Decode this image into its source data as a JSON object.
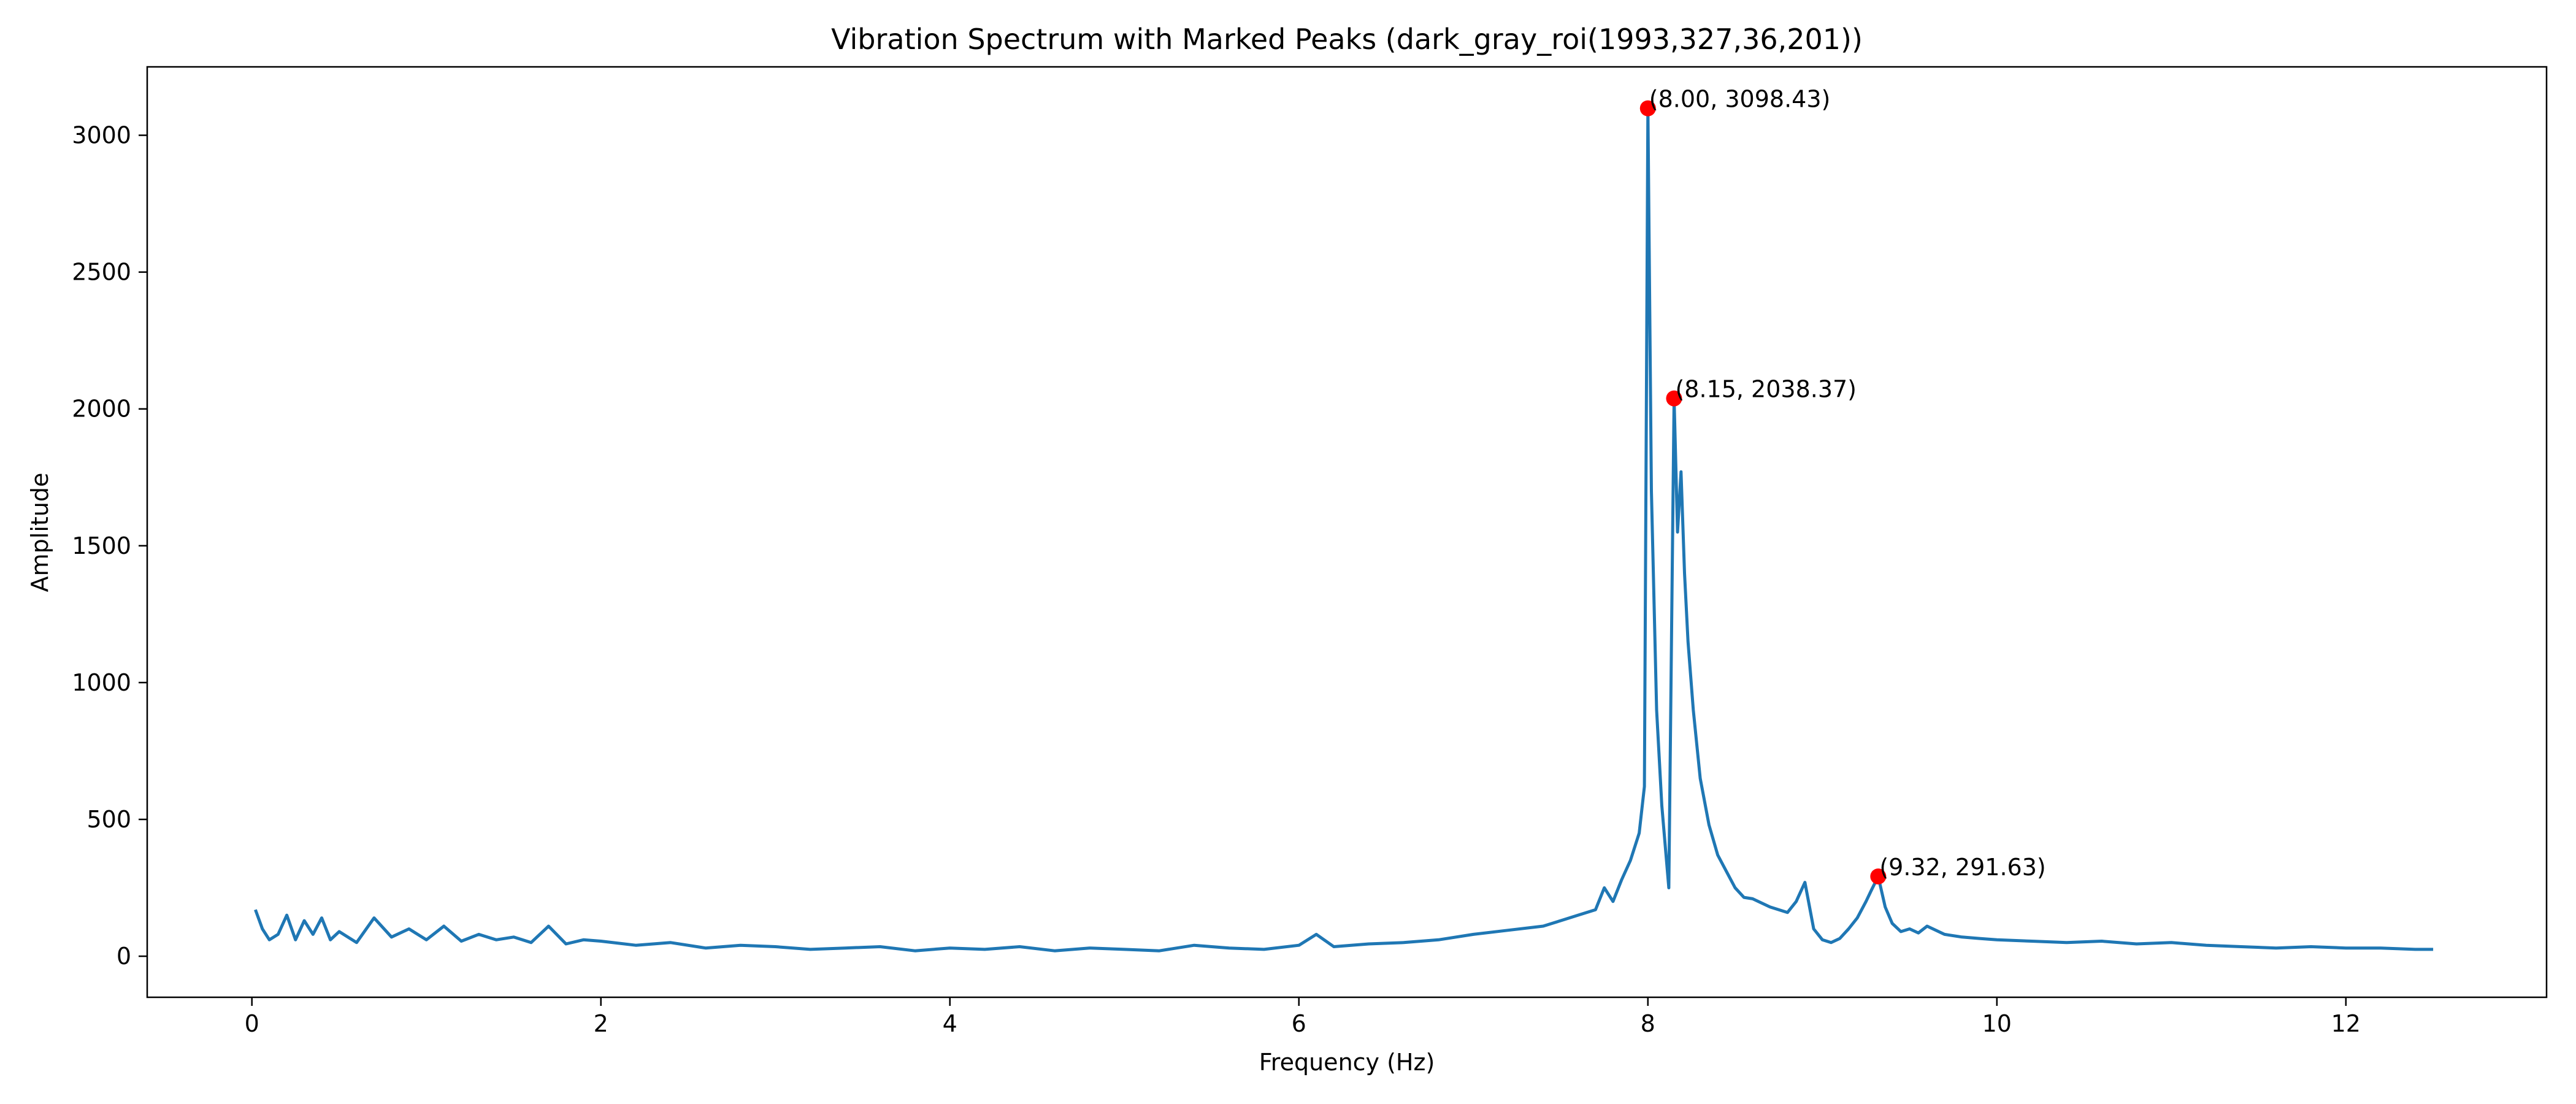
{
  "chart_data": {
    "type": "line",
    "title": "Vibration Spectrum with Marked Peaks (dark_gray_roi(1993,327,36,201))",
    "xlabel": "Frequency (Hz)",
    "ylabel": "Amplitude",
    "xlim": [
      -0.6,
      13.15
    ],
    "ylim": [
      -150,
      3250
    ],
    "xticks": [
      0,
      2,
      4,
      6,
      8,
      10,
      12
    ],
    "yticks": [
      0,
      500,
      1000,
      1500,
      2000,
      2500,
      3000
    ],
    "grid": false,
    "series": [
      {
        "color": "#1f77b4",
        "x": [
          0.02,
          0.06,
          0.1,
          0.15,
          0.2,
          0.25,
          0.3,
          0.35,
          0.4,
          0.45,
          0.5,
          0.6,
          0.7,
          0.8,
          0.9,
          1.0,
          1.1,
          1.2,
          1.3,
          1.4,
          1.5,
          1.6,
          1.7,
          1.8,
          1.9,
          2.0,
          2.2,
          2.4,
          2.6,
          2.8,
          3.0,
          3.2,
          3.4,
          3.6,
          3.8,
          4.0,
          4.2,
          4.4,
          4.6,
          4.8,
          5.0,
          5.2,
          5.4,
          5.6,
          5.8,
          6.0,
          6.1,
          6.2,
          6.4,
          6.6,
          6.8,
          7.0,
          7.2,
          7.4,
          7.5,
          7.6,
          7.7,
          7.75,
          7.8,
          7.85,
          7.9,
          7.95,
          7.98,
          8.0,
          8.02,
          8.05,
          8.08,
          8.12,
          8.15,
          8.17,
          8.19,
          8.21,
          8.23,
          8.26,
          8.3,
          8.35,
          8.4,
          8.45,
          8.5,
          8.55,
          8.6,
          8.7,
          8.8,
          8.85,
          8.9,
          8.95,
          9.0,
          9.05,
          9.1,
          9.15,
          9.2,
          9.25,
          9.28,
          9.32,
          9.36,
          9.4,
          9.45,
          9.5,
          9.55,
          9.6,
          9.7,
          9.8,
          9.9,
          10.0,
          10.2,
          10.4,
          10.6,
          10.8,
          11.0,
          11.2,
          11.4,
          11.6,
          11.8,
          12.0,
          12.2,
          12.4,
          12.5
        ],
        "values": [
          170,
          100,
          60,
          80,
          150,
          60,
          130,
          80,
          140,
          60,
          90,
          50,
          140,
          70,
          100,
          60,
          110,
          55,
          80,
          60,
          70,
          50,
          110,
          45,
          60,
          55,
          40,
          50,
          30,
          40,
          35,
          25,
          30,
          35,
          20,
          30,
          25,
          35,
          20,
          30,
          25,
          20,
          40,
          30,
          25,
          40,
          80,
          35,
          45,
          50,
          60,
          80,
          95,
          110,
          130,
          150,
          170,
          250,
          200,
          280,
          350,
          450,
          620,
          3098.43,
          1700,
          900,
          550,
          250,
          2038.37,
          1550,
          1770,
          1400,
          1150,
          900,
          650,
          480,
          370,
          310,
          250,
          215,
          210,
          180,
          160,
          200,
          270,
          100,
          60,
          50,
          65,
          100,
          140,
          200,
          240,
          291.63,
          180,
          120,
          90,
          100,
          85,
          110,
          80,
          70,
          65,
          60,
          55,
          50,
          55,
          45,
          50,
          40,
          35,
          30,
          35,
          30,
          30,
          25,
          25
        ]
      }
    ],
    "markers": {
      "color": "#ff0000",
      "points": [
        {
          "x": 8.0,
          "y": 3098.43,
          "label": "(8.00, 3098.43)"
        },
        {
          "x": 8.15,
          "y": 2038.37,
          "label": "(8.15, 2038.37)"
        },
        {
          "x": 9.32,
          "y": 291.63,
          "label": "(9.32, 291.63)"
        }
      ]
    }
  }
}
